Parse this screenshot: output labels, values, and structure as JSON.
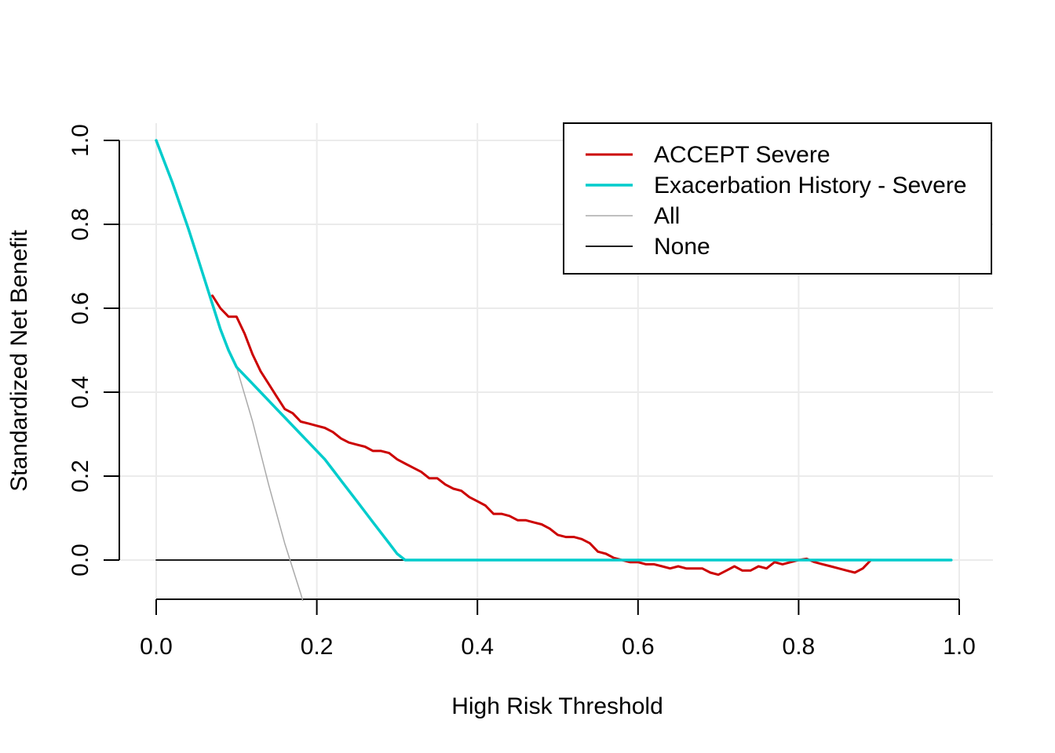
{
  "chart_data": {
    "type": "line",
    "title": "",
    "xlabel": "High Risk Threshold",
    "ylabel": "Standardized Net Benefit",
    "xlim": [
      0,
      1
    ],
    "ylim": [
      -0.1,
      1.0
    ],
    "xticks": [
      0.0,
      0.2,
      0.4,
      0.6,
      0.8,
      1.0
    ],
    "xtick_labels": [
      "0.0",
      "0.2",
      "0.4",
      "0.6",
      "0.8",
      "1.0"
    ],
    "yticks": [
      0.0,
      0.2,
      0.4,
      0.6,
      0.8,
      1.0
    ],
    "ytick_labels": [
      "0.0",
      "0.2",
      "0.4",
      "0.6",
      "0.8",
      "1.0"
    ],
    "grid": true,
    "legend_position": "top-right",
    "series": [
      {
        "name": "ACCEPT Severe",
        "color": "#CC0000",
        "x": [
          0.07,
          0.08,
          0.09,
          0.1,
          0.11,
          0.12,
          0.13,
          0.14,
          0.15,
          0.16,
          0.17,
          0.18,
          0.19,
          0.2,
          0.21,
          0.22,
          0.23,
          0.24,
          0.25,
          0.26,
          0.27,
          0.28,
          0.29,
          0.3,
          0.31,
          0.32,
          0.33,
          0.34,
          0.35,
          0.36,
          0.37,
          0.38,
          0.39,
          0.4,
          0.41,
          0.42,
          0.43,
          0.44,
          0.45,
          0.46,
          0.47,
          0.48,
          0.49,
          0.5,
          0.51,
          0.52,
          0.53,
          0.54,
          0.55,
          0.56,
          0.57,
          0.58,
          0.59,
          0.6,
          0.61,
          0.62,
          0.63,
          0.64,
          0.65,
          0.66,
          0.67,
          0.68,
          0.69,
          0.7,
          0.71,
          0.72,
          0.73,
          0.74,
          0.75,
          0.76,
          0.77,
          0.78,
          0.79,
          0.8,
          0.81,
          0.82,
          0.83,
          0.84,
          0.85,
          0.86,
          0.87,
          0.88,
          0.89
        ],
        "y": [
          0.63,
          0.6,
          0.58,
          0.58,
          0.54,
          0.49,
          0.45,
          0.42,
          0.39,
          0.36,
          0.35,
          0.33,
          0.325,
          0.32,
          0.315,
          0.305,
          0.29,
          0.28,
          0.275,
          0.27,
          0.26,
          0.26,
          0.255,
          0.24,
          0.23,
          0.22,
          0.21,
          0.195,
          0.195,
          0.18,
          0.17,
          0.165,
          0.15,
          0.14,
          0.13,
          0.11,
          0.11,
          0.105,
          0.095,
          0.095,
          0.09,
          0.085,
          0.075,
          0.06,
          0.055,
          0.055,
          0.05,
          0.04,
          0.02,
          0.015,
          0.005,
          0.0,
          -0.005,
          -0.005,
          -0.01,
          -0.01,
          -0.015,
          -0.02,
          -0.015,
          -0.02,
          -0.02,
          -0.02,
          -0.03,
          -0.035,
          -0.025,
          -0.015,
          -0.025,
          -0.025,
          -0.015,
          -0.02,
          -0.005,
          -0.01,
          -0.005,
          0.0,
          0.003,
          -0.005,
          -0.01,
          -0.015,
          -0.02,
          -0.025,
          -0.03,
          -0.02,
          0.0
        ]
      },
      {
        "name": "Exacerbation History - Severe",
        "color": "#00CCCC",
        "x": [
          0.0,
          0.01,
          0.02,
          0.03,
          0.04,
          0.05,
          0.06,
          0.07,
          0.08,
          0.09,
          0.1,
          0.11,
          0.12,
          0.13,
          0.14,
          0.15,
          0.16,
          0.17,
          0.18,
          0.19,
          0.2,
          0.21,
          0.22,
          0.23,
          0.24,
          0.25,
          0.26,
          0.27,
          0.28,
          0.29,
          0.3,
          0.31,
          0.32,
          0.99
        ],
        "y": [
          1.0,
          0.95,
          0.9,
          0.845,
          0.79,
          0.73,
          0.67,
          0.61,
          0.55,
          0.5,
          0.46,
          0.44,
          0.42,
          0.4,
          0.38,
          0.36,
          0.34,
          0.32,
          0.3,
          0.28,
          0.26,
          0.24,
          0.215,
          0.19,
          0.165,
          0.14,
          0.115,
          0.09,
          0.065,
          0.04,
          0.015,
          0.0,
          0.0,
          0.0
        ]
      },
      {
        "name": "All",
        "color": "#AAAAAA",
        "x": [
          0.0,
          0.02,
          0.04,
          0.06,
          0.08,
          0.1,
          0.12,
          0.14,
          0.16,
          0.18,
          0.183
        ],
        "y": [
          1.0,
          0.9,
          0.79,
          0.67,
          0.55,
          0.46,
          0.33,
          0.18,
          0.04,
          -0.08,
          -0.1
        ]
      },
      {
        "name": "None",
        "color": "#000000",
        "x": [
          0.0,
          0.99
        ],
        "y": [
          0.0,
          0.0
        ]
      }
    ]
  }
}
